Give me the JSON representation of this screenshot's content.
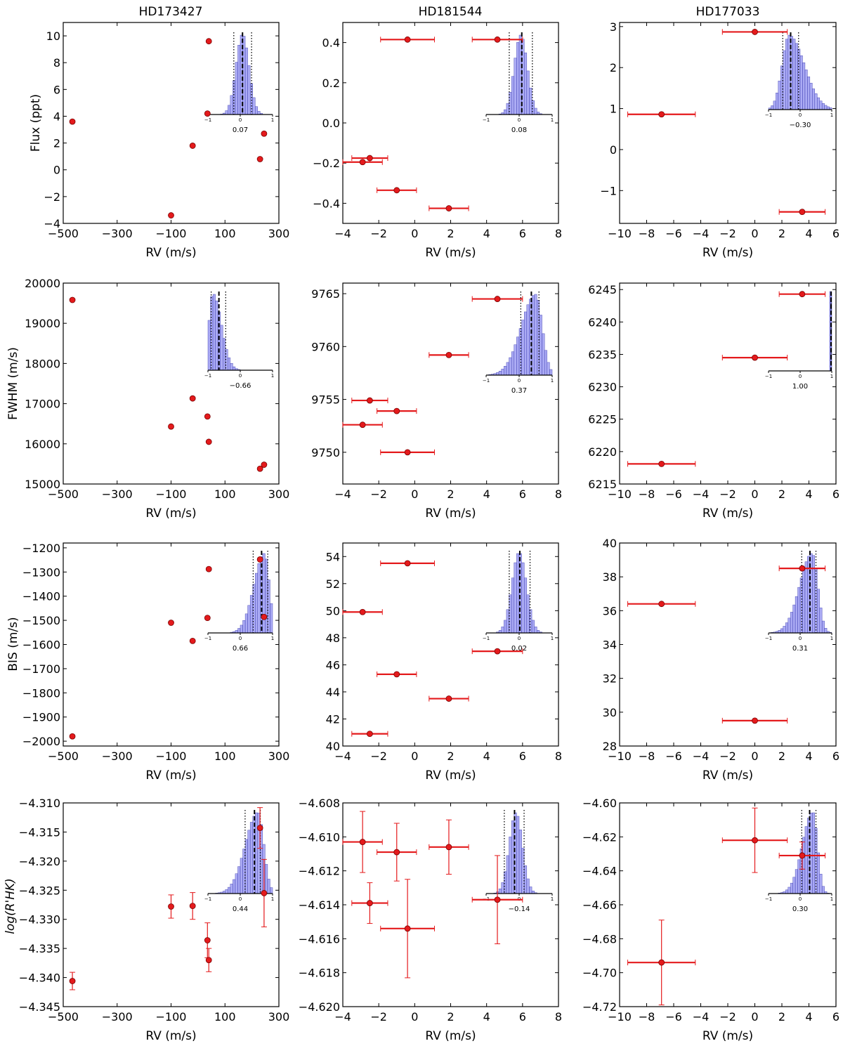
{
  "figure": {
    "column_titles": [
      "HD173427",
      "HD181544",
      "HD177033"
    ],
    "row_ylabels": [
      "Flux (ppt)",
      "FWHM (m/s)",
      "BIS (m/s)",
      "log(R'HK)"
    ],
    "xlabel": "RV (m/s)",
    "colors": {
      "marker": "#e41a1c",
      "hist_fill": "#8f8ff0",
      "hist_edge": "#3333aa"
    }
  },
  "chart_data": [
    {
      "type": "scatter",
      "title": "HD173427",
      "xlabel": "RV (m/s)",
      "ylabel": "Flux (ppt)",
      "xlim": [
        -500,
        300
      ],
      "ylim": [
        -4,
        11
      ],
      "xticks": [
        -500,
        -300,
        -100,
        100,
        300
      ],
      "xtick_labels": [
        "−500",
        "−300",
        "−100",
        "100",
        "300"
      ],
      "yticks": [
        -4,
        -2,
        0,
        2,
        4,
        6,
        8,
        10
      ],
      "ytick_labels": [
        "−4",
        "−2",
        "0",
        "2",
        "4",
        "6",
        "8",
        "10"
      ],
      "points": [
        {
          "x": -466,
          "y": 3.6
        },
        {
          "x": -100,
          "y": -3.4
        },
        {
          "x": -20,
          "y": 1.8
        },
        {
          "x": 40,
          "y": 9.6
        },
        {
          "x": 35,
          "y": 4.2
        },
        {
          "x": 230,
          "y": 0.8
        },
        {
          "x": 245,
          "y": 2.7
        }
      ],
      "inset": {
        "label": "0.07",
        "mean": 0.07,
        "std": 0.2,
        "skew": 0,
        "lines": [
          {
            "x": -0.2,
            "style": "dotted"
          },
          {
            "x": 0.07,
            "style": "dashed"
          },
          {
            "x": 0.35,
            "style": "dotted"
          }
        ]
      }
    },
    {
      "type": "scatter",
      "title": "HD181544",
      "xlabel": "RV (m/s)",
      "ylabel": "Flux (ppt)",
      "xlim": [
        -4,
        8
      ],
      "ylim": [
        -0.5,
        0.5
      ],
      "xticks": [
        -4,
        -2,
        0,
        2,
        4,
        6,
        8
      ],
      "xtick_labels": [
        "−4",
        "−2",
        "0",
        "2",
        "4",
        "6",
        "8"
      ],
      "yticks": [
        -0.4,
        -0.2,
        0.0,
        0.2,
        0.4
      ],
      "ytick_labels": [
        "−0.4",
        "−0.2",
        "0.0",
        "0.2",
        "0.4"
      ],
      "points": [
        {
          "x": -0.4,
          "y": 0.415,
          "xerr": 1.5
        },
        {
          "x": 4.6,
          "y": 0.415,
          "xerr": 1.4
        },
        {
          "x": -2.5,
          "y": -0.175,
          "xerr": 1.0
        },
        {
          "x": -2.9,
          "y": -0.195,
          "xerr": 1.1
        },
        {
          "x": -1.0,
          "y": -0.335,
          "xerr": 1.1
        },
        {
          "x": 1.9,
          "y": -0.425,
          "xerr": 1.1
        }
      ],
      "inset": {
        "label": "0.08",
        "mean": 0.05,
        "std": 0.2,
        "skew": 0,
        "lines": [
          {
            "x": -0.3,
            "style": "dotted"
          },
          {
            "x": 0.08,
            "style": "dashed"
          },
          {
            "x": 0.4,
            "style": "dotted"
          }
        ]
      }
    },
    {
      "type": "scatter",
      "title": "HD177033",
      "xlabel": "RV (m/s)",
      "ylabel": "Flux (ppt)",
      "xlim": [
        -10,
        6
      ],
      "ylim": [
        -1.8,
        3.1
      ],
      "xticks": [
        -10,
        -8,
        -6,
        -4,
        -2,
        0,
        2,
        4,
        6
      ],
      "xtick_labels": [
        "−10",
        "−8",
        "−6",
        "−4",
        "−2",
        "0",
        "2",
        "4",
        "6"
      ],
      "yticks": [
        -1,
        0,
        1,
        2,
        3
      ],
      "ytick_labels": [
        "−1",
        "0",
        "1",
        "2",
        "3"
      ],
      "points": [
        {
          "x": 0.0,
          "y": 2.87,
          "xerr": 2.4
        },
        {
          "x": -6.9,
          "y": 0.86,
          "xerr": 2.5
        },
        {
          "x": 3.5,
          "y": -1.52,
          "xerr": 1.7
        }
      ],
      "inset": {
        "label": "−0.30",
        "mean": -0.35,
        "std": 0.22,
        "skew": 1,
        "lines": [
          {
            "x": -0.55,
            "style": "dotted"
          },
          {
            "x": -0.3,
            "style": "dashed"
          },
          {
            "x": -0.05,
            "style": "dotted"
          }
        ]
      }
    },
    {
      "type": "scatter",
      "title": "HD173427",
      "xlabel": "RV (m/s)",
      "ylabel": "FWHM (m/s)",
      "xlim": [
        -500,
        300
      ],
      "ylim": [
        15000,
        20000
      ],
      "xticks": [
        -500,
        -300,
        -100,
        100,
        300
      ],
      "xtick_labels": [
        "−500",
        "−300",
        "−100",
        "100",
        "300"
      ],
      "yticks": [
        15000,
        16000,
        17000,
        18000,
        19000,
        20000
      ],
      "ytick_labels": [
        "15000",
        "16000",
        "17000",
        "18000",
        "19000",
        "20000"
      ],
      "points": [
        {
          "x": -466,
          "y": 19580
        },
        {
          "x": -100,
          "y": 16430
        },
        {
          "x": -20,
          "y": 17130
        },
        {
          "x": 35,
          "y": 16680
        },
        {
          "x": 40,
          "y": 16050
        },
        {
          "x": 230,
          "y": 15380
        },
        {
          "x": 245,
          "y": 15480
        }
      ],
      "inset": {
        "label": "−0.66",
        "mean": -0.85,
        "std": 0.12,
        "skew": 1,
        "lines": [
          {
            "x": -0.9,
            "style": "dotted"
          },
          {
            "x": -0.66,
            "style": "dashed"
          },
          {
            "x": -0.45,
            "style": "dotted"
          }
        ]
      }
    },
    {
      "type": "scatter",
      "title": "HD181544",
      "xlabel": "RV (m/s)",
      "ylabel": "FWHM (m/s)",
      "xlim": [
        -4,
        8
      ],
      "ylim": [
        9747,
        9766
      ],
      "xticks": [
        -4,
        -2,
        0,
        2,
        4,
        6,
        8
      ],
      "xtick_labels": [
        "−4",
        "−2",
        "0",
        "2",
        "4",
        "6",
        "8"
      ],
      "yticks": [
        9750,
        9755,
        9760,
        9765
      ],
      "ytick_labels": [
        "9750",
        "9755",
        "9760",
        "9765"
      ],
      "points": [
        {
          "x": 4.6,
          "y": 9764.5,
          "xerr": 1.4
        },
        {
          "x": 1.9,
          "y": 9759.2,
          "xerr": 1.1
        },
        {
          "x": -2.5,
          "y": 9754.9,
          "xerr": 1.0
        },
        {
          "x": -1.0,
          "y": 9753.9,
          "xerr": 1.1
        },
        {
          "x": -2.9,
          "y": 9752.6,
          "xerr": 1.1
        },
        {
          "x": -0.4,
          "y": 9750.0,
          "xerr": 1.5
        }
      ],
      "inset": {
        "label": "0.37",
        "mean": 0.5,
        "std": 0.2,
        "skew": -1,
        "lines": [
          {
            "x": 0.05,
            "style": "dotted"
          },
          {
            "x": 0.37,
            "style": "dashed"
          },
          {
            "x": 0.6,
            "style": "dotted"
          }
        ]
      }
    },
    {
      "type": "scatter",
      "title": "HD177033",
      "xlabel": "RV (m/s)",
      "ylabel": "FWHM (m/s)",
      "xlim": [
        -10,
        6
      ],
      "ylim": [
        6215,
        6246
      ],
      "xticks": [
        -10,
        -8,
        -6,
        -4,
        -2,
        0,
        2,
        4,
        6
      ],
      "xtick_labels": [
        "−10",
        "−8",
        "−6",
        "−4",
        "−2",
        "0",
        "2",
        "4",
        "6"
      ],
      "yticks": [
        6215,
        6220,
        6225,
        6230,
        6235,
        6240,
        6245
      ],
      "ytick_labels": [
        "6215",
        "6220",
        "6225",
        "6230",
        "6235",
        "6240",
        "6245"
      ],
      "points": [
        {
          "x": 3.5,
          "y": 6244.3,
          "xerr": 1.7
        },
        {
          "x": 0.0,
          "y": 6234.5,
          "xerr": 2.4
        },
        {
          "x": -6.9,
          "y": 6218.1,
          "xerr": 2.5
        }
      ],
      "inset": {
        "label": "1.00",
        "mean": 1.0,
        "std": 0.01,
        "skew": 0,
        "lines": [
          {
            "x": 0.99,
            "style": "dotted"
          },
          {
            "x": 1.0,
            "style": "dashed"
          }
        ]
      }
    },
    {
      "type": "scatter",
      "title": "HD173427",
      "xlabel": "RV (m/s)",
      "ylabel": "BIS (m/s)",
      "xlim": [
        -500,
        300
      ],
      "ylim": [
        -2020,
        -1180
      ],
      "xticks": [
        -500,
        -300,
        -100,
        100,
        300
      ],
      "xtick_labels": [
        "−500",
        "−300",
        "−100",
        "100",
        "300"
      ],
      "yticks": [
        -2000,
        -1900,
        -1800,
        -1700,
        -1600,
        -1500,
        -1400,
        -1300,
        -1200
      ],
      "ytick_labels": [
        "−2000",
        "−1900",
        "−1800",
        "−1700",
        "−1600",
        "−1500",
        "−1400",
        "−1300",
        "−1200"
      ],
      "points": [
        {
          "x": 40,
          "y": -1288
        },
        {
          "x": 230,
          "y": -1248
        },
        {
          "x": 35,
          "y": -1490
        },
        {
          "x": 245,
          "y": -1486
        },
        {
          "x": -100,
          "y": -1510
        },
        {
          "x": -20,
          "y": -1585
        },
        {
          "x": -466,
          "y": -1980
        }
      ],
      "inset": {
        "label": "0.66",
        "mean": 0.75,
        "std": 0.15,
        "skew": -1,
        "lines": [
          {
            "x": 0.4,
            "style": "dotted"
          },
          {
            "x": 0.66,
            "style": "dashed"
          },
          {
            "x": 0.85,
            "style": "dotted"
          }
        ]
      }
    },
    {
      "type": "scatter",
      "title": "HD181544",
      "xlabel": "RV (m/s)",
      "ylabel": "BIS (m/s)",
      "xlim": [
        -4,
        8
      ],
      "ylim": [
        40,
        55
      ],
      "xticks": [
        -4,
        -2,
        0,
        2,
        4,
        6,
        8
      ],
      "xtick_labels": [
        "−4",
        "−2",
        "0",
        "2",
        "4",
        "6",
        "8"
      ],
      "yticks": [
        40,
        42,
        44,
        46,
        48,
        50,
        52,
        54
      ],
      "ytick_labels": [
        "40",
        "42",
        "44",
        "46",
        "48",
        "50",
        "52",
        "54"
      ],
      "points": [
        {
          "x": -0.4,
          "y": 53.5,
          "xerr": 1.5
        },
        {
          "x": -2.9,
          "y": 49.9,
          "xerr": 1.1
        },
        {
          "x": 4.6,
          "y": 47.0,
          "xerr": 1.4
        },
        {
          "x": -1.0,
          "y": 45.3,
          "xerr": 1.1
        },
        {
          "x": 1.9,
          "y": 43.5,
          "xerr": 1.1
        },
        {
          "x": -2.5,
          "y": 40.9,
          "xerr": 1.0
        }
      ],
      "inset": {
        "label": "0.02",
        "mean": 0.0,
        "std": 0.22,
        "skew": 0,
        "lines": [
          {
            "x": -0.3,
            "style": "dotted"
          },
          {
            "x": 0.02,
            "style": "dashed"
          },
          {
            "x": 0.33,
            "style": "dotted"
          }
        ]
      }
    },
    {
      "type": "scatter",
      "title": "HD177033",
      "xlabel": "RV (m/s)",
      "ylabel": "BIS (m/s)",
      "xlim": [
        -10,
        6
      ],
      "ylim": [
        28,
        40
      ],
      "xticks": [
        -10,
        -8,
        -6,
        -4,
        -2,
        0,
        2,
        4,
        6
      ],
      "xtick_labels": [
        "−10",
        "−8",
        "−6",
        "−4",
        "−2",
        "0",
        "2",
        "4",
        "6"
      ],
      "yticks": [
        28,
        30,
        32,
        34,
        36,
        38,
        40
      ],
      "ytick_labels": [
        "28",
        "30",
        "32",
        "34",
        "36",
        "38",
        "40"
      ],
      "points": [
        {
          "x": 3.5,
          "y": 38.5,
          "xerr": 1.7
        },
        {
          "x": -6.9,
          "y": 36.4,
          "xerr": 2.5
        },
        {
          "x": 0.0,
          "y": 29.5,
          "xerr": 2.4
        }
      ],
      "inset": {
        "label": "0.31",
        "mean": 0.38,
        "std": 0.18,
        "skew": -1,
        "lines": [
          {
            "x": 0.05,
            "style": "dotted"
          },
          {
            "x": 0.31,
            "style": "dashed"
          },
          {
            "x": 0.5,
            "style": "dotted"
          }
        ]
      }
    },
    {
      "type": "scatter",
      "title": "HD173427",
      "xlabel": "RV (m/s)",
      "ylabel": "log(R'HK)",
      "xlim": [
        -500,
        300
      ],
      "ylim": [
        -4.345,
        -4.31
      ],
      "xticks": [
        -500,
        -300,
        -100,
        100,
        300
      ],
      "xtick_labels": [
        "−500",
        "−300",
        "−100",
        "100",
        "300"
      ],
      "yticks": [
        -4.345,
        -4.34,
        -4.335,
        -4.33,
        -4.325,
        -4.32,
        -4.315,
        -4.31
      ],
      "ytick_labels": [
        "−4.345",
        "−4.340",
        "−4.335",
        "−4.330",
        "−4.325",
        "−4.320",
        "−4.315",
        "−4.310"
      ],
      "points": [
        {
          "x": 230,
          "y": -4.3143,
          "yerr": 0.0035
        },
        {
          "x": 245,
          "y": -4.3255,
          "yerr": 0.0058
        },
        {
          "x": -100,
          "y": -4.3278,
          "yerr": 0.002
        },
        {
          "x": -20,
          "y": -4.3277,
          "yerr": 0.0023
        },
        {
          "x": 35,
          "y": -4.3336,
          "yerr": 0.003
        },
        {
          "x": 40,
          "y": -4.337,
          "yerr": 0.002
        },
        {
          "x": -466,
          "y": -4.3406,
          "yerr": 0.0015
        }
      ],
      "inset": {
        "label": "0.44",
        "mean": 0.55,
        "std": 0.18,
        "skew": -1,
        "lines": [
          {
            "x": 0.15,
            "style": "dotted"
          },
          {
            "x": 0.44,
            "style": "dashed"
          },
          {
            "x": 0.62,
            "style": "dotted"
          }
        ]
      }
    },
    {
      "type": "scatter",
      "title": "HD181544",
      "xlabel": "RV (m/s)",
      "ylabel": "log(R'HK)",
      "xlim": [
        -4,
        8
      ],
      "ylim": [
        -4.62,
        -4.608
      ],
      "xticks": [
        -4,
        -2,
        0,
        2,
        4,
        6,
        8
      ],
      "xtick_labels": [
        "−4",
        "−2",
        "0",
        "2",
        "4",
        "6",
        "8"
      ],
      "yticks": [
        -4.62,
        -4.618,
        -4.616,
        -4.614,
        -4.612,
        -4.61,
        -4.608
      ],
      "ytick_labels": [
        "−4.620",
        "−4.618",
        "−4.616",
        "−4.614",
        "−4.612",
        "−4.610",
        "−4.608"
      ],
      "points": [
        {
          "x": -2.9,
          "y": -4.6103,
          "xerr": 1.1,
          "yerr": 0.0018
        },
        {
          "x": -1.0,
          "y": -4.6109,
          "xerr": 1.1,
          "yerr": 0.0017
        },
        {
          "x": 1.9,
          "y": -4.6106,
          "xerr": 1.1,
          "yerr": 0.0016
        },
        {
          "x": -2.5,
          "y": -4.6139,
          "xerr": 1.0,
          "yerr": 0.0012
        },
        {
          "x": 4.6,
          "y": -4.6137,
          "xerr": 1.4,
          "yerr": 0.0026
        },
        {
          "x": -0.4,
          "y": -4.6154,
          "xerr": 1.5,
          "yerr": 0.0029
        }
      ],
      "inset": {
        "label": "−0.14",
        "mean": -0.1,
        "std": 0.2,
        "skew": 0,
        "lines": [
          {
            "x": -0.45,
            "style": "dotted"
          },
          {
            "x": -0.14,
            "style": "dashed"
          },
          {
            "x": 0.15,
            "style": "dotted"
          }
        ]
      }
    },
    {
      "type": "scatter",
      "title": "HD177033",
      "xlabel": "RV (m/s)",
      "ylabel": "log(R'HK)",
      "xlim": [
        -10,
        6
      ],
      "ylim": [
        -4.72,
        -4.6
      ],
      "xticks": [
        -10,
        -8,
        -6,
        -4,
        -2,
        0,
        2,
        4,
        6
      ],
      "xtick_labels": [
        "−10",
        "−8",
        "−6",
        "−4",
        "−2",
        "0",
        "2",
        "4",
        "6"
      ],
      "yticks": [
        -4.72,
        -4.7,
        -4.68,
        -4.66,
        -4.64,
        -4.62,
        -4.6
      ],
      "ytick_labels": [
        "−4.72",
        "−4.70",
        "−4.68",
        "−4.66",
        "−4.64",
        "−4.62",
        "−4.60"
      ],
      "points": [
        {
          "x": 0.0,
          "y": -4.622,
          "xerr": 2.4,
          "yerr": 0.019
        },
        {
          "x": 3.5,
          "y": -4.631,
          "xerr": 1.7,
          "yerr": 0.008
        },
        {
          "x": -6.9,
          "y": -4.694,
          "xerr": 2.5,
          "yerr": 0.025
        }
      ],
      "inset": {
        "label": "0.30",
        "mean": 0.4,
        "std": 0.15,
        "skew": -1,
        "lines": [
          {
            "x": 0.05,
            "style": "dotted"
          },
          {
            "x": 0.3,
            "style": "dashed"
          },
          {
            "x": 0.5,
            "style": "dotted"
          }
        ]
      }
    }
  ]
}
